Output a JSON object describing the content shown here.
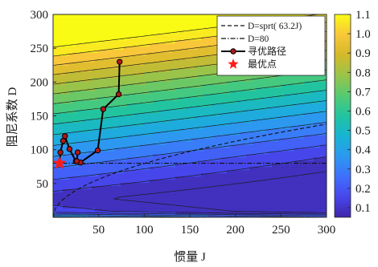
{
  "chart_data": {
    "type": "contour",
    "xlabel": "惯量 J",
    "ylabel": "阻尼系数 D",
    "xlim": [
      0,
      300
    ],
    "ylim": [
      0,
      300
    ],
    "xticks": [
      "50",
      "100",
      "150",
      "200",
      "250",
      "300"
    ],
    "yticks": [
      "50",
      "100",
      "150",
      "200",
      "250",
      "300"
    ],
    "colorbar": {
      "range": [
        0.05,
        1.1
      ],
      "ticks": [
        "0.1",
        "0.2",
        "0.3",
        "0.4",
        "0.5",
        "0.6",
        "0.7",
        "0.8",
        "0.9",
        "1.0",
        "1.1"
      ],
      "colormap": "parula"
    },
    "legend": {
      "position": "top-right",
      "entries": [
        {
          "key": "sqrt_curve",
          "label": "D=sprt( 63.2J)",
          "style": "dashed"
        },
        {
          "key": "d80_line",
          "label": "D=80",
          "style": "dash-dot"
        },
        {
          "key": "search_path",
          "label": "寻优路径",
          "style": "line-marker"
        },
        {
          "key": "optimum",
          "label": "最优点",
          "style": "star"
        }
      ]
    },
    "series": [
      {
        "name": "寻优路径",
        "x": [
          7,
          8,
          11,
          13,
          18,
          25,
          30,
          49,
          55,
          72,
          73,
          27,
          26
        ],
        "y": [
          80,
          96,
          113,
          120,
          101,
          83,
          81,
          99,
          160,
          182,
          230,
          96,
          83
        ]
      }
    ],
    "path_order": [
      0,
      1,
      2,
      3,
      4,
      5,
      6,
      7,
      8,
      9,
      10
    ],
    "optimum": {
      "x": 7,
      "y": 80
    },
    "reference_lines": [
      {
        "name": "D=80",
        "y": 80
      },
      {
        "name": "D=sprt( 63.2J)",
        "formula": "sqrt(63.2*J)"
      }
    ]
  }
}
